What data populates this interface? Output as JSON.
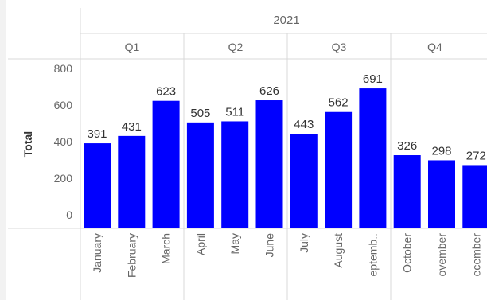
{
  "chart_data": {
    "type": "bar",
    "year_label": "2021",
    "ylabel": "Total",
    "ylim": [
      0,
      800
    ],
    "yticks": [
      0,
      200,
      400,
      600,
      800
    ],
    "bar_color": "#0000FF",
    "quarters": [
      {
        "label": "Q1",
        "categories": [
          "January",
          "February",
          "March"
        ]
      },
      {
        "label": "Q2",
        "categories": [
          "April",
          "May",
          "June"
        ]
      },
      {
        "label": "Q3",
        "categories": [
          "July",
          "August",
          "eptemb.."
        ]
      },
      {
        "label": "Q4",
        "categories": [
          "October",
          "ovember",
          "ecember"
        ]
      }
    ],
    "categories": [
      "January",
      "February",
      "March",
      "April",
      "May",
      "June",
      "July",
      "August",
      "eptemb..",
      "October",
      "ovember",
      "ecember"
    ],
    "values": [
      391,
      431,
      623,
      505,
      511,
      626,
      443,
      562,
      691,
      326,
      298,
      272
    ],
    "grid": false
  }
}
